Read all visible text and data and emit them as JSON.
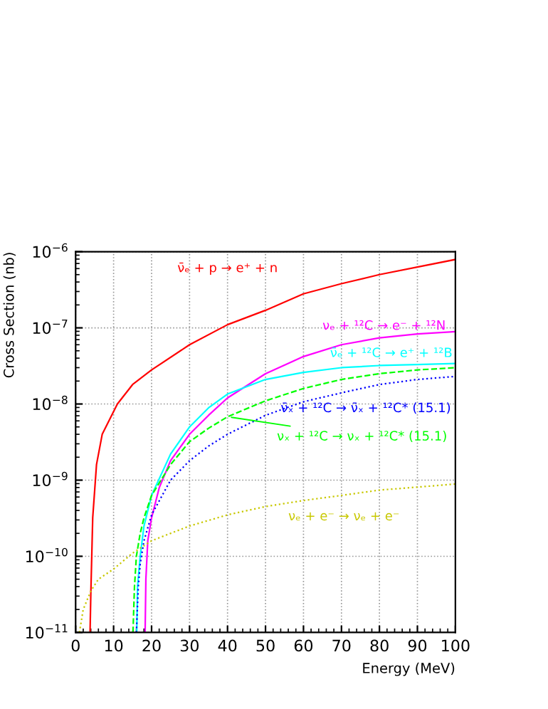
{
  "chart_data": {
    "type": "line",
    "xlabel": "Energy (MeV)",
    "ylabel": "Cross Section (nb)",
    "log": "y",
    "xlim": [
      0,
      100
    ],
    "ylim": [
      1e-11,
      1e-06
    ],
    "xticks": [
      0,
      10,
      20,
      30,
      40,
      50,
      60,
      70,
      80,
      90,
      100
    ],
    "yticks": [
      {
        "value": 1e-11,
        "label": "10$^{−11}$"
      },
      {
        "value": 1e-10,
        "label": "10$^{−10}$"
      },
      {
        "value": 1e-09,
        "label": "10$^{−9}$"
      },
      {
        "value": 1e-08,
        "label": "10$^{−8}$"
      },
      {
        "value": 1e-07,
        "label": "10$^{−7}$"
      },
      {
        "value": 1e-06,
        "label": "10$^{−6}$"
      }
    ],
    "grid": true,
    "legend": false,
    "series": [
      {
        "name": "ν̄ₑ + p → e⁺ + n",
        "color": "#ff0000",
        "line_style": "solid",
        "x": [
          3.8,
          4,
          4.5,
          5.5,
          7,
          11,
          15,
          20,
          30,
          40,
          50,
          60,
          70,
          80,
          90,
          100
        ],
        "values": [
          1e-11,
          3.2e-11,
          3.2e-10,
          1.6e-09,
          4e-09,
          1e-08,
          1.8e-08,
          2.8e-08,
          6e-08,
          1.1e-07,
          1.7e-07,
          2.8e-07,
          3.8e-07,
          5e-07,
          6.3e-07,
          7.9e-07
        ]
      },
      {
        "name": "νₑ + ¹²C → e⁻ + ¹²N",
        "color": "#ff00ff",
        "line_style": "solid",
        "x": [
          18.3,
          18.5,
          19,
          20,
          22,
          25,
          30,
          35,
          40,
          50,
          60,
          70,
          80,
          90,
          100
        ],
        "values": [
          1e-11,
          5e-11,
          1.6e-10,
          3.2e-10,
          7.9e-10,
          1.8e-09,
          4e-09,
          7.1e-09,
          1.2e-08,
          2.5e-08,
          4.2e-08,
          6e-08,
          7.4e-08,
          8.3e-08,
          8.9e-08
        ]
      },
      {
        "name": "ν̄ₑ + ¹²C → e⁺ + ¹²B",
        "color": "#00ffff",
        "line_style": "solid",
        "x": [
          16.1,
          16.3,
          17,
          18,
          20,
          25,
          30,
          35,
          40,
          50,
          60,
          70,
          80,
          90,
          100
        ],
        "values": [
          1e-11,
          4e-11,
          1e-10,
          2.5e-10,
          6.3e-10,
          2.2e-09,
          5e-09,
          8.9e-09,
          1.35e-08,
          2.1e-08,
          2.6e-08,
          3e-08,
          3.2e-08,
          3.3e-08,
          3.4e-08
        ]
      },
      {
        "name": "ν̄ₓ + ¹²C → ν̄ₓ + ¹²C* (15.1)",
        "color": "#0000ff",
        "line_style": "dotted",
        "x": [
          16,
          16.5,
          17,
          18,
          20,
          25,
          30,
          35,
          40,
          50,
          60,
          70,
          80,
          90,
          100
        ],
        "values": [
          1e-11,
          4e-11,
          7.9e-11,
          1.6e-10,
          3.5e-10,
          1e-09,
          1.8e-09,
          2.8e-09,
          4e-09,
          7.1e-09,
          1.07e-08,
          1.4e-08,
          1.8e-08,
          2.1e-08,
          2.3e-08
        ]
      },
      {
        "name": "νₓ + ¹²C → νₓ + ¹²C* (15.1)",
        "color": "#00ff00",
        "line_style": "dashed",
        "x": [
          15.1,
          15.5,
          16,
          17,
          18,
          20,
          25,
          30,
          35,
          40,
          50,
          60,
          70,
          80,
          90,
          100
        ],
        "values": [
          1e-11,
          4e-11,
          1e-10,
          2e-10,
          3.2e-10,
          6.3e-10,
          1.6e-09,
          3.2e-09,
          4.8e-09,
          6.8e-09,
          1.1e-08,
          1.6e-08,
          2.1e-08,
          2.5e-08,
          2.8e-08,
          3e-08
        ]
      },
      {
        "name": "νₑ + e⁻ → νₑ + e⁻",
        "color": "#c8c800",
        "line_style": "dotted",
        "x": [
          1,
          2,
          4,
          6,
          10,
          15,
          20,
          30,
          40,
          50,
          60,
          70,
          80,
          90,
          100
        ],
        "values": [
          1e-11,
          2e-11,
          3.5e-11,
          5e-11,
          6.8e-11,
          1.1e-10,
          1.6e-10,
          2.5e-10,
          3.5e-10,
          4.5e-10,
          5.4e-10,
          6.3e-10,
          7.4e-10,
          8.1e-10,
          8.9e-10
        ]
      }
    ]
  }
}
